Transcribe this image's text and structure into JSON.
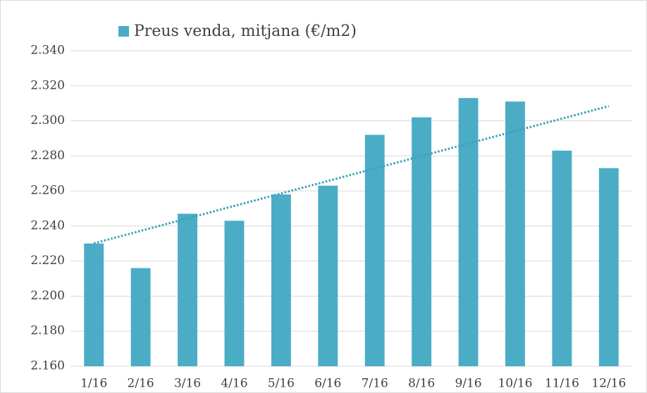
{
  "chart_data": {
    "type": "bar",
    "series": [
      {
        "name": "Preus venda, mitjana (€/m2)",
        "color": "#4bacc6",
        "values": [
          2230,
          2216,
          2247,
          2243,
          2258,
          2263,
          2292,
          2302,
          2313,
          2311,
          2283,
          2273
        ]
      }
    ],
    "categories": [
      "1/16",
      "2/16",
      "3/16",
      "4/16",
      "5/16",
      "6/16",
      "7/16",
      "8/16",
      "9/16",
      "10/16",
      "11/16",
      "12/16"
    ],
    "ylim": [
      2160,
      2340
    ],
    "yticks": [
      {
        "value": 2160,
        "label": "2.160"
      },
      {
        "value": 2180,
        "label": "2.180"
      },
      {
        "value": 2200,
        "label": "2.200"
      },
      {
        "value": 2220,
        "label": "2.220"
      },
      {
        "value": 2240,
        "label": "2.240"
      },
      {
        "value": 2260,
        "label": "2.260"
      },
      {
        "value": 2280,
        "label": "2.280"
      },
      {
        "value": 2300,
        "label": "2.300"
      },
      {
        "value": 2320,
        "label": "2.320"
      },
      {
        "value": 2340,
        "label": "2.340"
      }
    ],
    "grid": true,
    "trendline": "linear",
    "legend": "top"
  }
}
